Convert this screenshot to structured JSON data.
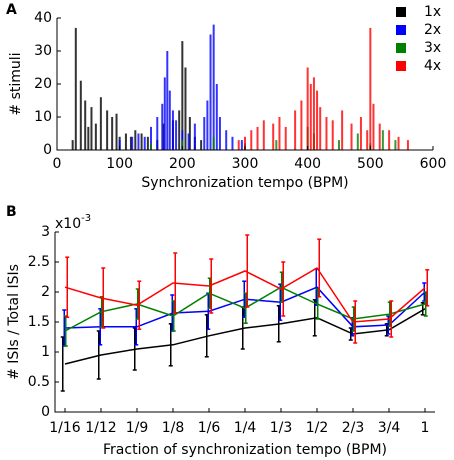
{
  "chart_data": [
    {
      "type": "bar",
      "panel_label": "A",
      "y_label": "# stimuli",
      "x_label": "Synchronization tempo (BPM)",
      "xlim": [
        0,
        600
      ],
      "xticks": [
        0,
        100,
        200,
        300,
        400,
        500,
        600
      ],
      "ylim": [
        0,
        40
      ],
      "yticks": [
        0,
        10,
        20,
        30,
        40
      ],
      "legend": "top-right",
      "series": [
        {
          "name": "1x",
          "color": "#000000",
          "x": [
            25,
            30,
            38,
            45,
            50,
            55,
            62,
            70,
            80,
            88,
            95,
            100,
            110,
            118,
            125,
            135,
            145,
            160,
            170,
            185,
            195,
            200,
            205,
            212,
            220,
            230
          ],
          "values": [
            3,
            37,
            21,
            15,
            7,
            13,
            8,
            16,
            12,
            10,
            11,
            4,
            5,
            4,
            6,
            5,
            4,
            3,
            8,
            9,
            12,
            33,
            25,
            10,
            4,
            3
          ]
        },
        {
          "name": "2x",
          "color": "#0000ff",
          "x": [
            100,
            120,
            130,
            140,
            150,
            160,
            168,
            172,
            176,
            180,
            185,
            190,
            200,
            210,
            220,
            235,
            240,
            245,
            250,
            255,
            260,
            270,
            280,
            295
          ],
          "values": [
            3,
            4,
            5,
            4,
            7,
            10,
            14,
            22,
            30,
            18,
            12,
            9,
            6,
            5,
            8,
            10,
            15,
            35,
            38,
            20,
            10,
            6,
            4,
            3
          ]
        },
        {
          "name": "3x",
          "color": "#008000",
          "x": [
            150,
            200,
            250,
            300,
            350,
            400,
            410,
            450,
            480,
            500,
            520,
            540
          ],
          "values": [
            2,
            3,
            4,
            2,
            3,
            7,
            5,
            3,
            5,
            2,
            6,
            3
          ]
        },
        {
          "name": "4x",
          "color": "#ff0000",
          "x": [
            290,
            300,
            310,
            320,
            330,
            345,
            355,
            365,
            380,
            390,
            400,
            405,
            410,
            415,
            420,
            430,
            440,
            455,
            470,
            485,
            495,
            500,
            505,
            515,
            530,
            545,
            560
          ],
          "values": [
            3,
            4,
            6,
            7,
            9,
            8,
            10,
            7,
            12,
            15,
            25,
            20,
            22,
            18,
            13,
            10,
            9,
            12,
            8,
            10,
            6,
            37,
            14,
            8,
            6,
            4,
            3
          ]
        }
      ]
    },
    {
      "type": "line",
      "panel_label": "B",
      "y_label": "# ISIs / Total ISIs",
      "x_label": "Fraction of synchronization tempo (BPM)",
      "multiplier_base": "x10",
      "multiplier_exponent": "-3",
      "categories": [
        "1/16",
        "1/12",
        "1/9",
        "1/8",
        "1/6",
        "1/4",
        "1/3",
        "1/2",
        "2/3",
        "3/4",
        "1"
      ],
      "ylim": [
        0,
        3
      ],
      "yticks": [
        0,
        0.5,
        1,
        1.5,
        2,
        2.5,
        3
      ],
      "series": [
        {
          "color": "#000000",
          "values": [
            0.8,
            0.95,
            1.05,
            1.12,
            1.27,
            1.4,
            1.47,
            1.57,
            1.3,
            1.37,
            1.72
          ],
          "errors": [
            0.45,
            0.4,
            0.35,
            0.35,
            0.35,
            0.35,
            0.3,
            0.3,
            0.1,
            0.1,
            0.1
          ]
        },
        {
          "color": "#0000ff",
          "values": [
            1.4,
            1.42,
            1.42,
            1.65,
            1.68,
            1.88,
            1.83,
            2.08,
            1.42,
            1.45,
            2.0
          ],
          "errors": [
            0.3,
            0.3,
            0.3,
            0.3,
            0.3,
            0.3,
            0.3,
            0.3,
            0.15,
            0.15,
            0.15
          ]
        },
        {
          "color": "#008000",
          "values": [
            1.35,
            1.67,
            1.8,
            1.6,
            1.98,
            1.73,
            2.08,
            1.8,
            1.55,
            1.63,
            1.8
          ],
          "errors": [
            0.25,
            0.25,
            0.25,
            0.25,
            0.25,
            0.25,
            0.25,
            0.25,
            0.2,
            0.2,
            0.2
          ]
        },
        {
          "color": "#ff0000",
          "values": [
            2.08,
            1.9,
            1.78,
            2.15,
            2.1,
            2.35,
            2.05,
            2.4,
            1.5,
            1.55,
            2.07
          ],
          "errors": [
            0.5,
            0.5,
            0.4,
            0.5,
            0.45,
            0.6,
            0.45,
            0.48,
            0.35,
            0.3,
            0.3
          ]
        }
      ]
    }
  ]
}
